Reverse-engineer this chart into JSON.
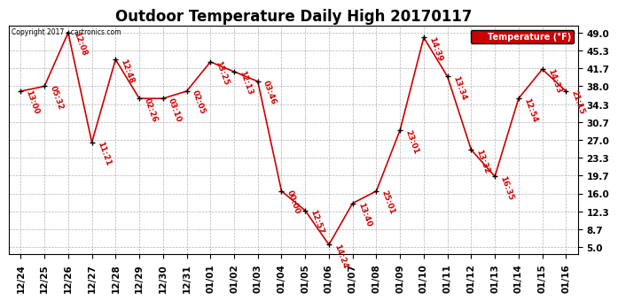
{
  "title": "Outdoor Temperature Daily High 20170117",
  "copyright": "Copyright 2017 - cartronics.com",
  "legend_label": "Temperature (°F)",
  "x_labels": [
    "12/24",
    "12/25",
    "12/26",
    "12/27",
    "12/28",
    "12/29",
    "12/30",
    "12/31",
    "01/01",
    "01/02",
    "01/03",
    "01/04",
    "01/05",
    "01/06",
    "01/07",
    "01/08",
    "01/09",
    "01/10",
    "01/11",
    "01/12",
    "01/13",
    "01/14",
    "01/15",
    "01/16"
  ],
  "y_values": [
    37.0,
    38.0,
    49.0,
    26.5,
    43.5,
    35.5,
    35.5,
    37.0,
    43.0,
    41.0,
    39.0,
    16.5,
    12.5,
    5.5,
    14.0,
    16.5,
    29.0,
    48.0,
    40.0,
    25.0,
    19.5,
    35.5,
    41.5,
    37.0
  ],
  "point_labels": [
    "13:00",
    "05:32",
    "12:08",
    "11:21",
    "12:48",
    "02:26",
    "03:10",
    "02:05",
    "13:25",
    "12:13",
    "03:46",
    "00:00",
    "12:57",
    "14:24",
    "13:40",
    "25:01",
    "23:01",
    "14:39",
    "13:34",
    "13:32",
    "16:35",
    "12:54",
    "14:33",
    "21:15"
  ],
  "y_ticks": [
    5.0,
    8.7,
    12.3,
    16.0,
    19.7,
    23.3,
    27.0,
    30.7,
    34.3,
    38.0,
    41.7,
    45.3,
    49.0
  ],
  "y_min": 3.5,
  "y_max": 50.5,
  "line_color": "#cc0000",
  "marker_color": "#000000",
  "label_color": "#cc0000",
  "bg_color": "#ffffff",
  "grid_color": "#aaaaaa",
  "title_fontsize": 12,
  "label_fontsize": 6.5,
  "tick_fontsize": 7.5,
  "legend_bg": "#cc0000",
  "legend_text_color": "#ffffff"
}
